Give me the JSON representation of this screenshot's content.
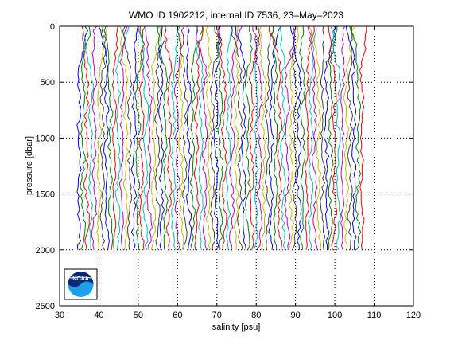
{
  "chart_data": {
    "type": "line",
    "title": "WMO ID 1902212, internal ID 7536, 23–May–2023",
    "xlabel": "salinity [psu]",
    "ylabel": "pressure [dbar]",
    "xlim": [
      30,
      120
    ],
    "ylim": [
      0,
      2500
    ],
    "y_reversed": true,
    "grid": true,
    "x_ticks": [
      30,
      40,
      50,
      60,
      70,
      80,
      90,
      100,
      110,
      120
    ],
    "y_ticks": [
      0,
      500,
      1000,
      1500,
      2000,
      2500
    ],
    "profiles": {
      "count": 73,
      "first_offset_psu": 34.9,
      "offset_step_psu": 1.0,
      "min_pressure_dbar": 0,
      "max_pressure_dbar": 2000
    },
    "profile_colors": [
      "#0000ff",
      "#008000",
      "#ff0000",
      "#00bfbf",
      "#bf00bf",
      "#bfbf00",
      "#404040"
    ],
    "logo": {
      "text": "NOAA",
      "icon": "noaa-logo"
    }
  }
}
